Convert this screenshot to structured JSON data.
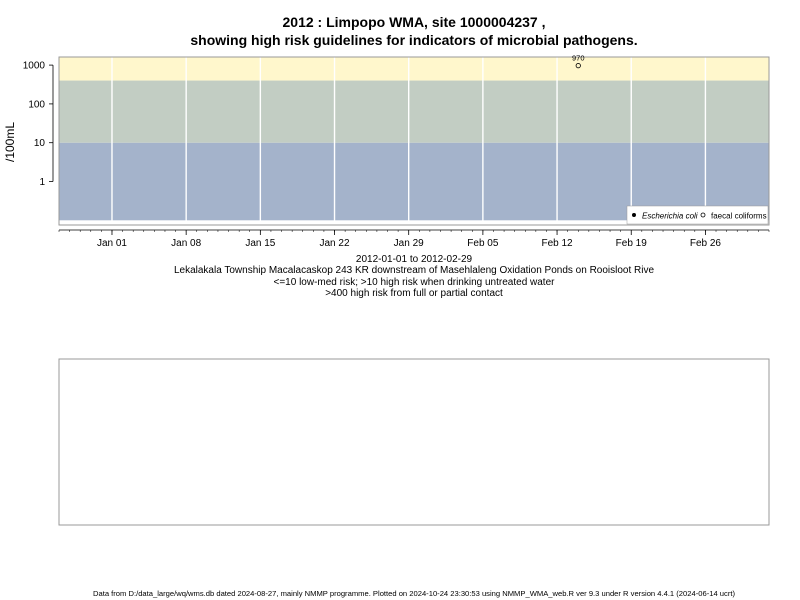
{
  "chart_data": {
    "type": "scatter",
    "title": "2012 : Limpopo WMA, site 1000004237 ,",
    "subtitle": "showing high risk guidelines for indicators of microbial pathogens.",
    "ylabel": "/100mL",
    "y_scale": "log",
    "y_ticks": [
      1,
      10,
      100,
      1000
    ],
    "y_tick_labels": [
      "1",
      "10",
      "100",
      "1000"
    ],
    "x_range": [
      "2011-12-27",
      "2012-03-03"
    ],
    "x_ticks": [
      "2012-01-01",
      "2012-01-08",
      "2012-01-15",
      "2012-01-22",
      "2012-01-29",
      "2012-02-05",
      "2012-02-12",
      "2012-02-19",
      "2012-02-26"
    ],
    "x_tick_labels": [
      "Jan 01",
      "Jan 08",
      "Jan 15",
      "Jan 22",
      "Jan 29",
      "Feb 05",
      "Feb 12",
      "Feb 19",
      "Feb 26"
    ],
    "bands": [
      {
        "from": 0.1,
        "to": 10,
        "color": "#a4b3cb"
      },
      {
        "from": 10,
        "to": 400,
        "color": "#c2cdc3"
      },
      {
        "from": 400,
        "to": 2500,
        "color": "#fff7cc"
      }
    ],
    "grid": true,
    "legend": "bottom-right",
    "series": [
      {
        "name": "Escherichia coli",
        "marker": "filled-circle",
        "points": []
      },
      {
        "name": "faecal coliforms",
        "marker": "open-circle",
        "points": [
          {
            "x": "2012-02-14",
            "y": 970,
            "label": "970"
          }
        ]
      }
    ],
    "captions": [
      "2012-01-01 to 2012-02-29",
      "Lekalakala Township Macalacaskop 243 KR downstream of Masehlaleng Oxidation Ponds on Rooisloot Rive",
      "<=10 low-med risk; >10 high risk when drinking untreated water",
      ">400 high risk from full or partial contact"
    ],
    "footer": "Data from D:/data_large/wq/wms.db dated 2024-08-27, mainly NMMP programme. Plotted on 2024-10-24 23:30:53 using NMMP_WMA_web.R ver 9.3 under R version 4.4.1 (2024-06-14 ucrt)"
  }
}
